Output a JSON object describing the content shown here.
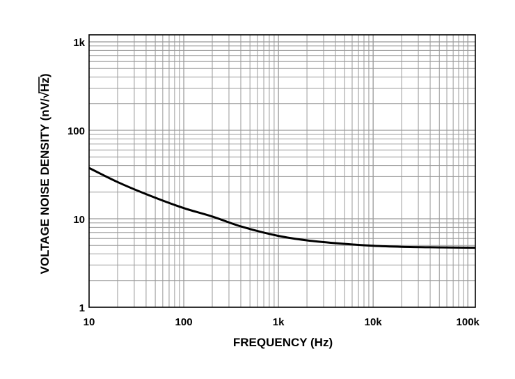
{
  "chart_data": {
    "type": "line",
    "title": "",
    "xlabel": "FREQUENCY (Hz)",
    "ylabel": "VOLTAGE NOISE DENSITY (nV/√Hz)",
    "ylabel_main": "VOLTAGE NOISE DENSITY (nV/",
    "ylabel_radical": "√",
    "ylabel_radicand": "Hz",
    "ylabel_close": ")",
    "xscale": "log",
    "yscale": "log",
    "xlim": [
      10,
      120000
    ],
    "ylim": [
      1,
      1200
    ],
    "grid": true,
    "x_ticks": [
      {
        "value": 10,
        "label": "10"
      },
      {
        "value": 100,
        "label": "100"
      },
      {
        "value": 1000,
        "label": "1k"
      },
      {
        "value": 10000,
        "label": "10k"
      },
      {
        "value": 100000,
        "label": "100k"
      }
    ],
    "y_ticks": [
      {
        "value": 1,
        "label": "1"
      },
      {
        "value": 10,
        "label": "10"
      },
      {
        "value": 100,
        "label": "100"
      },
      {
        "value": 1000,
        "label": "1k"
      }
    ],
    "series": [
      {
        "x": [
          10,
          20,
          40,
          100,
          200,
          400,
          1000,
          2000,
          4000,
          10000,
          20000,
          50000,
          120000
        ],
        "y": [
          37.5,
          26,
          19,
          13.2,
          10.6,
          8.2,
          6.4,
          5.7,
          5.3,
          4.95,
          4.82,
          4.75,
          4.7
        ]
      }
    ],
    "colors": {
      "line": "#000000",
      "grid": "#9a9a9a",
      "frame": "#000000"
    }
  }
}
